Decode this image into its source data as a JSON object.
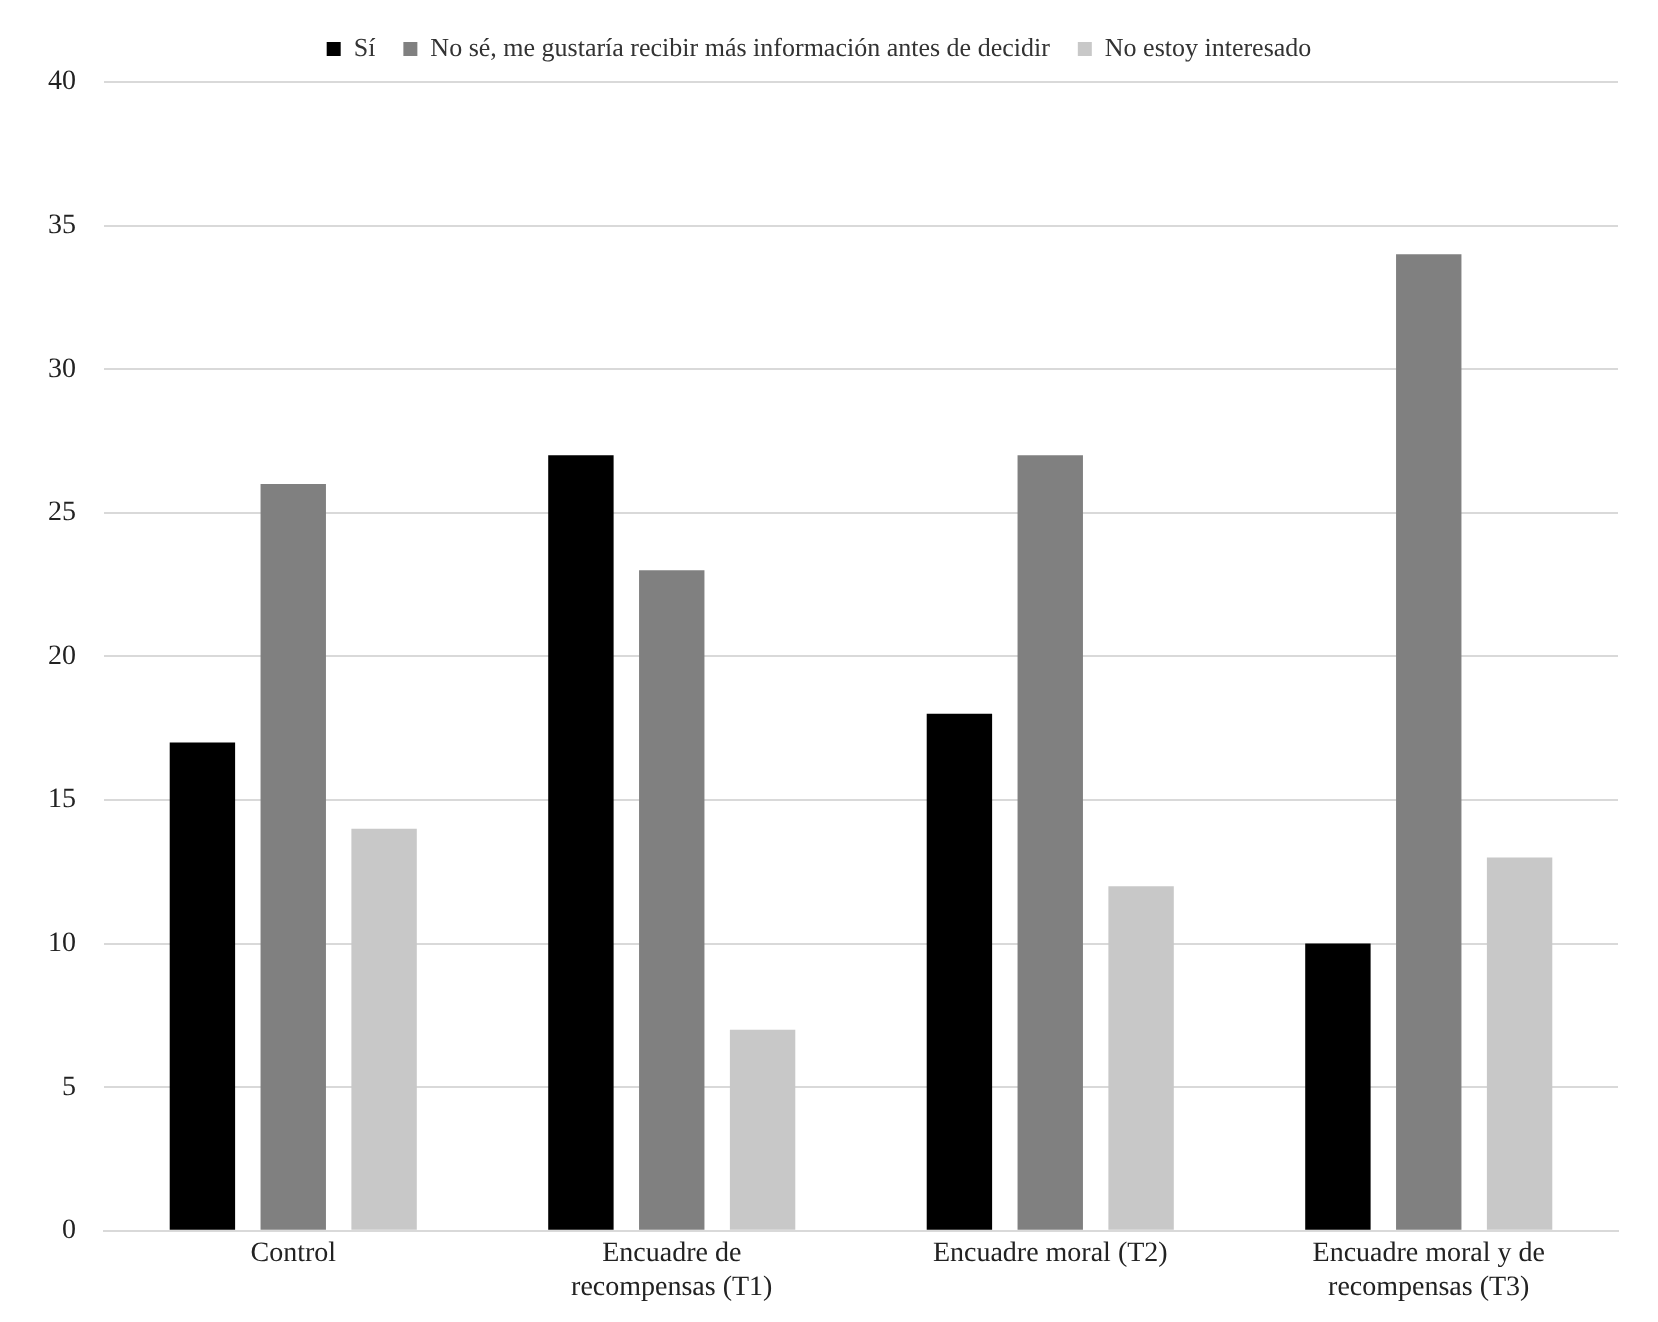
{
  "chart_data": {
    "type": "bar",
    "categories": [
      "Control",
      "Encuadre de recompensas (T1)",
      "Encuadre moral (T2)",
      "Encuadre moral y de recompensas (T3)"
    ],
    "series": [
      {
        "name": "Sí",
        "color": "#000000",
        "values": [
          17,
          27,
          18,
          10
        ]
      },
      {
        "name": "No sé, me gustaría recibir más información antes de decidir",
        "color": "#808080",
        "values": [
          26,
          23,
          27,
          34
        ]
      },
      {
        "name": "No estoy interesado",
        "color": "#c8c8c8",
        "values": [
          14,
          7,
          12,
          13
        ]
      }
    ],
    "ylim": [
      0,
      40
    ],
    "yticks": [
      0,
      5,
      10,
      15,
      20,
      25,
      30,
      35,
      40
    ],
    "grid": "y",
    "legend": "top"
  }
}
